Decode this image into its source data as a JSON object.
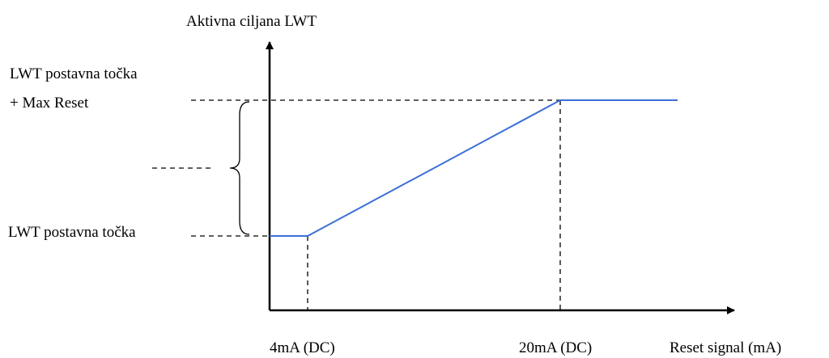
{
  "chart_data": {
    "type": "line",
    "title": "",
    "ylabel": "Aktivna ciljana LWT",
    "xlabel": "Reset signal (mA)",
    "x_ticks": [
      "4mA (DC)",
      "20mA (DC)"
    ],
    "y_ticks": {
      "top_line1": "LWT postavna točka",
      "top_line2": "+ Max Reset",
      "bottom": "LWT postavna točka"
    },
    "series": [
      {
        "color": "#3b6fd8",
        "points": [
          {
            "x": 0,
            "y": 0
          },
          {
            "x": 4,
            "y": 0
          },
          {
            "x": 20,
            "y": 1
          },
          {
            "x": 27,
            "y": 1
          }
        ]
      }
    ],
    "xlim": [
      0,
      27
    ],
    "ylim": [
      0,
      1
    ],
    "grid": false
  }
}
